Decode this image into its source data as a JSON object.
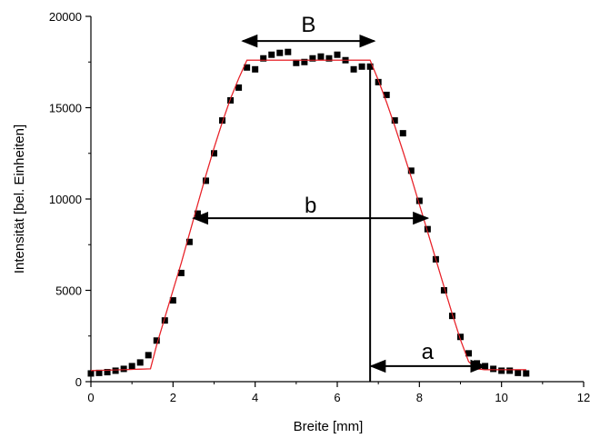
{
  "chart_data": {
    "type": "scatter",
    "xlabel": "Breite [mm]",
    "ylabel": "Intensität [bel. Einheiten]",
    "xlim": [
      0,
      12
    ],
    "ylim": [
      0,
      20000
    ],
    "xticks": [
      0,
      2,
      4,
      6,
      8,
      10,
      12
    ],
    "yticks": [
      0,
      5000,
      10000,
      15000,
      20000
    ],
    "grid": false,
    "series": [
      {
        "kind": "scatter",
        "marker_color": "#000000",
        "x": [
          0.0,
          0.2,
          0.4,
          0.6,
          0.8,
          1.0,
          1.2,
          1.4,
          1.6,
          1.8,
          2.0,
          2.2,
          2.4,
          2.6,
          2.8,
          3.0,
          3.2,
          3.4,
          3.6,
          3.8,
          4.0,
          4.2,
          4.4,
          4.6,
          4.8,
          5.0,
          5.2,
          5.4,
          5.6,
          5.8,
          6.0,
          6.2,
          6.4,
          6.6,
          6.8,
          7.0,
          7.2,
          7.4,
          7.6,
          7.8,
          8.0,
          8.2,
          8.4,
          8.6,
          8.8,
          9.0,
          9.2,
          9.4,
          9.6,
          9.8,
          10.0,
          10.2,
          10.4,
          10.6
        ],
        "y": [
          450,
          480,
          520,
          600,
          700,
          850,
          1050,
          1450,
          2250,
          3350,
          4450,
          5950,
          7650,
          9200,
          11000,
          12500,
          14300,
          15400,
          16100,
          17200,
          17100,
          17700,
          17900,
          18000,
          18050,
          17450,
          17500,
          17700,
          17800,
          17700,
          17900,
          17600,
          17100,
          17250,
          17250,
          16400,
          15700,
          14300,
          13600,
          11550,
          9900,
          8350,
          6700,
          5000,
          3600,
          2450,
          1550,
          1000,
          850,
          700,
          600,
          600,
          480,
          450
        ]
      },
      {
        "kind": "line",
        "line_color": "#e8242b",
        "x": [
          0.0,
          1.45,
          1.6,
          1.8,
          2.0,
          2.2,
          2.4,
          2.6,
          2.8,
          3.0,
          3.2,
          3.4,
          3.6,
          3.8,
          6.8,
          7.0,
          7.2,
          7.4,
          7.6,
          7.8,
          8.0,
          8.2,
          8.4,
          8.6,
          8.8,
          9.0,
          9.2,
          9.4,
          9.6,
          10.6
        ],
        "y": [
          600,
          700,
          2000,
          3500,
          5000,
          6500,
          8100,
          9700,
          11300,
          12800,
          14200,
          15500,
          16600,
          17600,
          17600,
          16500,
          15300,
          14000,
          12600,
          11200,
          9700,
          8200,
          6700,
          5200,
          3700,
          2300,
          1100,
          700,
          650,
          650
        ]
      }
    ],
    "annotations": {
      "B": {
        "text": "B",
        "x_from": 3.7,
        "x_to": 6.9,
        "y": 18650
      },
      "b": {
        "text": "b",
        "x_from": 2.5,
        "x_to": 8.2,
        "y": 8950
      },
      "a": {
        "text": "a",
        "x_from": 6.8,
        "x_to": 9.6,
        "y": 850
      },
      "vline": {
        "x": 6.8,
        "y_from": 0,
        "y_to": 17300
      }
    }
  }
}
